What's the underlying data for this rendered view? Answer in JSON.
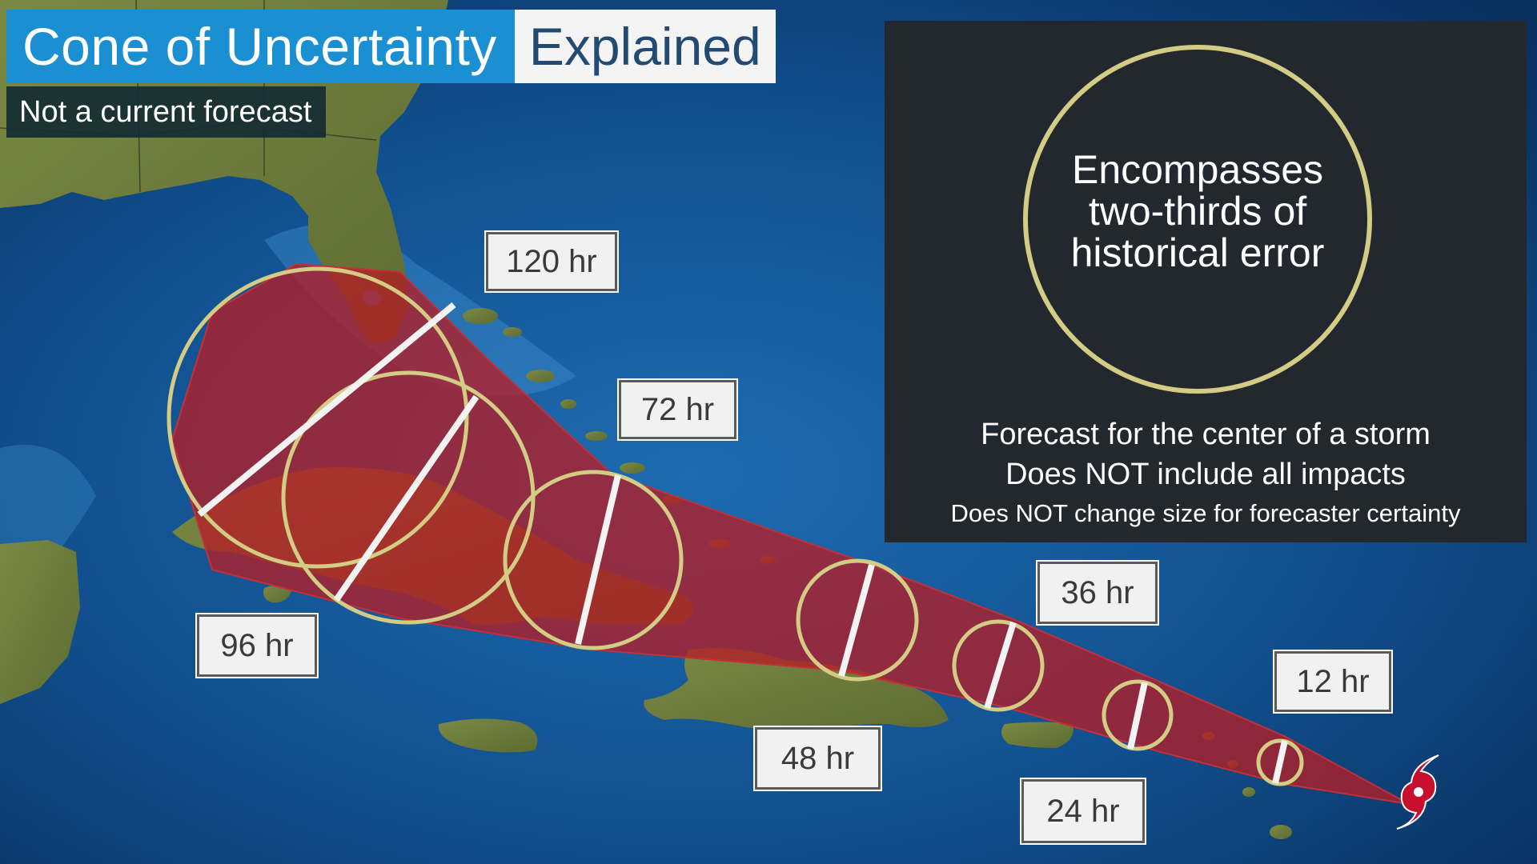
{
  "header": {
    "title": "Cone of Uncertainty",
    "title_accent": "Explained",
    "subtitle": "Not a current forecast"
  },
  "info_panel": {
    "circle_text_lines": [
      "Encompasses",
      "two-thirds of",
      "historical error"
    ],
    "lines": [
      "Forecast for the center of a storm",
      "Does NOT include all impacts",
      "Does NOT change size for forecaster certainty"
    ]
  },
  "forecast_labels": [
    "12 hr",
    "24 hr",
    "36 hr",
    "48 hr",
    "72 hr",
    "96 hr",
    "120 hr"
  ],
  "colors": {
    "title_bg": "#1a8fd1",
    "title_accent_text": "#234a72",
    "cone_fill": "#b31e26",
    "circle_outline": "#d2cc85",
    "ocean": "#0c3f78",
    "land": "#6e7d3c",
    "panel_bg": "#22282e",
    "storm_icon": "#c8102e"
  },
  "icons": {
    "storm": "tropical-storm-icon"
  }
}
